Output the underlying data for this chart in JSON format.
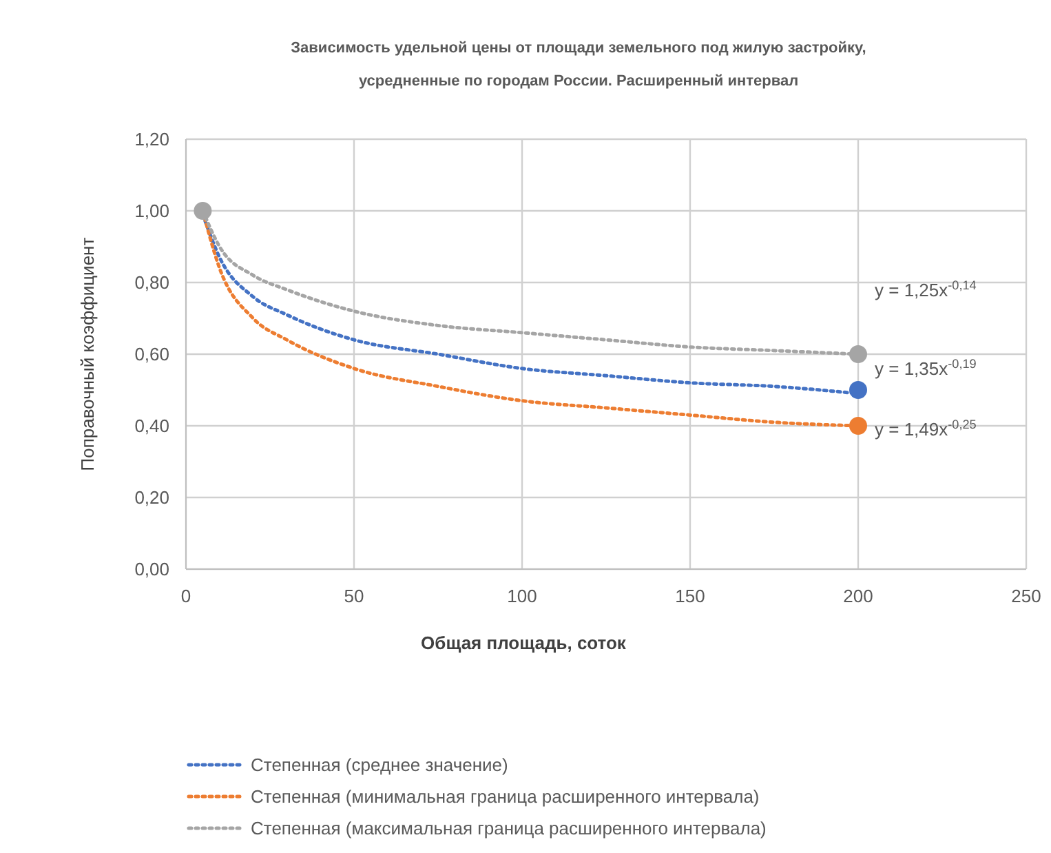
{
  "chart_data": {
    "type": "line",
    "title": "Зависимость удельной цены от площади земельного под жилую застройку,\nусредненные по городам России. Расширенный интервал",
    "xlabel": "Общая площадь, соток",
    "ylabel": "Поправочный коэффициент",
    "xlim": [
      0,
      250
    ],
    "xticks": [
      0,
      50,
      100,
      150,
      200,
      250
    ],
    "ylim": [
      0,
      1.2
    ],
    "yticks": [
      {
        "value": 0,
        "label": "0,00"
      },
      {
        "value": 0.2,
        "label": "0,20"
      },
      {
        "value": 0.4,
        "label": "0,40"
      },
      {
        "value": 0.6,
        "label": "0,60"
      },
      {
        "value": 0.8,
        "label": "0,80"
      },
      {
        "value": 1,
        "label": "1,00"
      },
      {
        "value": 1.2,
        "label": "1,20"
      }
    ],
    "grid": true,
    "legend": "bottom",
    "line_style": "dotted",
    "series": [
      {
        "name": "Степенная (среднее значение)",
        "color": "#4472c4",
        "x": [
          5,
          10,
          20,
          30,
          50,
          75,
          100,
          125,
          150,
          175,
          200
        ],
        "values": [
          0.99,
          0.87,
          0.76,
          0.71,
          0.64,
          0.6,
          0.56,
          0.54,
          0.52,
          0.51,
          0.49
        ]
      },
      {
        "name": "Степенная (минимальная граница расширенного интервала)",
        "color": "#ed7d31",
        "x": [
          5,
          10,
          20,
          30,
          50,
          75,
          100,
          125,
          150,
          175,
          200
        ],
        "values": [
          1,
          0.84,
          0.7,
          0.64,
          0.56,
          0.51,
          0.47,
          0.45,
          0.43,
          0.41,
          0.4
        ]
      },
      {
        "name": "Степенная (максимальная граница расширенного интервала)",
        "color": "#a5a5a5",
        "x": [
          5,
          10,
          20,
          30,
          50,
          75,
          100,
          125,
          150,
          175,
          200
        ],
        "values": [
          1,
          0.9,
          0.82,
          0.78,
          0.72,
          0.68,
          0.66,
          0.64,
          0.62,
          0.61,
          0.6
        ]
      },
      {
        "type": "scatter",
        "marker": "circle",
        "color": "#a5a5a5",
        "x": [
          5,
          200
        ],
        "values": [
          1,
          0.6
        ]
      },
      {
        "type": "scatter",
        "marker": "circle",
        "color": "#4472c4",
        "x": [
          200
        ],
        "values": [
          0.5
        ]
      },
      {
        "type": "scatter",
        "marker": "circle",
        "color": "#ed7d31",
        "x": [
          200
        ],
        "values": [
          0.4
        ]
      }
    ],
    "annotations": [
      "y = 1,25x$^{-0,14}$",
      "y = 1,35x$^{-0,19}$",
      "y = 1,49x$^{-0,25}$"
    ]
  }
}
